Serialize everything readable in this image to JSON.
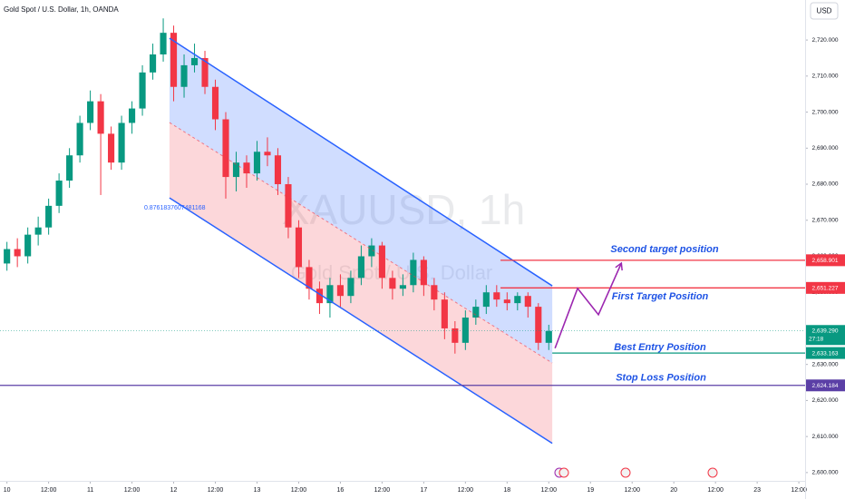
{
  "chart_data": {
    "type": "candlestick",
    "title": "Gold Spot / U.S. Dollar, 1h, OANDA",
    "watermark": "XAUUSD, 1h",
    "watermark_subtitle": "Gold Spot / U.S. Dollar",
    "currency": "USD",
    "up_color": "#089981",
    "down_color": "#f23645",
    "x": [
      0,
      3,
      6,
      9,
      12,
      15,
      18,
      21,
      24,
      27,
      30,
      33,
      36,
      39,
      42,
      45,
      48,
      51,
      54,
      57,
      60,
      63,
      66,
      69,
      72,
      75,
      78,
      81,
      84,
      87,
      90,
      93,
      96,
      99,
      102,
      105,
      108,
      111,
      114,
      117,
      120,
      123,
      126,
      129,
      132,
      135,
      138,
      141,
      144,
      147,
      150,
      153,
      156
    ],
    "open": [
      2658,
      2662,
      2660,
      2666,
      2668,
      2674,
      2681,
      2688,
      2697,
      2703,
      2694,
      2686,
      2697,
      2701,
      2711,
      2716,
      2722,
      2707,
      2713,
      2715,
      2707,
      2698,
      2682,
      2686,
      2683,
      2689,
      2688,
      2680,
      2668,
      2657,
      2651,
      2647,
      2652,
      2649,
      2654,
      2660,
      2663,
      2654,
      2651,
      2652,
      2659,
      2652,
      2648,
      2640,
      2636,
      2643,
      2646,
      2650,
      2648,
      2647,
      2649,
      2646,
      2636
    ],
    "high": [
      2664,
      2665,
      2668,
      2671,
      2676,
      2683,
      2690,
      2699,
      2706,
      2705,
      2696,
      2699,
      2703,
      2713,
      2719,
      2726,
      2724,
      2716,
      2719,
      2717,
      2709,
      2700,
      2689,
      2688,
      2692,
      2693,
      2690,
      2682,
      2670,
      2659,
      2653,
      2654,
      2655,
      2656,
      2663,
      2665,
      2664,
      2656,
      2655,
      2661,
      2660,
      2654,
      2650,
      2642,
      2645,
      2648,
      2652,
      2652,
      2650,
      2650,
      2650,
      2647,
      2641
    ],
    "low": [
      2656,
      2657,
      2658,
      2663,
      2666,
      2672,
      2679,
      2686,
      2695,
      2677,
      2684,
      2684,
      2694,
      2699,
      2709,
      2714,
      2703,
      2704,
      2711,
      2705,
      2695,
      2676,
      2678,
      2679,
      2681,
      2685,
      2677,
      2665,
      2654,
      2648,
      2644,
      2643,
      2646,
      2647,
      2652,
      2657,
      2651,
      2648,
      2649,
      2650,
      2649,
      2645,
      2637,
      2633,
      2634,
      2641,
      2644,
      2646,
      2645,
      2645,
      2643,
      2634,
      2634
    ],
    "close": [
      2662,
      2660,
      2666,
      2668,
      2674,
      2681,
      2688,
      2697,
      2703,
      2694,
      2686,
      2697,
      2701,
      2711,
      2716,
      2722,
      2707,
      2713,
      2715,
      2707,
      2698,
      2682,
      2686,
      2683,
      2689,
      2688,
      2680,
      2668,
      2657,
      2651,
      2647,
      2652,
      2649,
      2654,
      2660,
      2663,
      2654,
      2651,
      2652,
      2659,
      2652,
      2648,
      2640,
      2636,
      2643,
      2646,
      2650,
      2648,
      2647,
      2649,
      2646,
      2636,
      2639.29
    ],
    "xlim": [
      -2,
      229.8
    ],
    "xticks": [
      {
        "value": 0,
        "label": "10"
      },
      {
        "value": 12,
        "label": "12:00"
      },
      {
        "value": 24,
        "label": "11"
      },
      {
        "value": 36,
        "label": "12:00"
      },
      {
        "value": 48,
        "label": "12"
      },
      {
        "value": 60,
        "label": "12:00"
      },
      {
        "value": 72,
        "label": "13"
      },
      {
        "value": 84,
        "label": "12:00"
      },
      {
        "value": 96,
        "label": "16"
      },
      {
        "value": 108,
        "label": "12:00"
      },
      {
        "value": 120,
        "label": "17"
      },
      {
        "value": 132,
        "label": "12:00"
      },
      {
        "value": 144,
        "label": "18"
      },
      {
        "value": 156,
        "label": "12:00"
      },
      {
        "value": 168,
        "label": "19"
      },
      {
        "value": 180,
        "label": "12:00"
      },
      {
        "value": 192,
        "label": "20"
      },
      {
        "value": 204,
        "label": "12:00"
      },
      {
        "value": 216,
        "label": "23"
      },
      {
        "value": 228,
        "label": "12:00"
      }
    ],
    "ylim": [
      2597.7,
      2731.1
    ],
    "yticks": [
      {
        "value": 2600,
        "label": "2,600.000"
      },
      {
        "value": 2610,
        "label": "2,610.000"
      },
      {
        "value": 2620,
        "label": "2,620.000"
      },
      {
        "value": 2630,
        "label": "2,630.000"
      },
      {
        "value": 2640,
        "label": "2,640.000"
      },
      {
        "value": 2650,
        "label": "2,650.000"
      },
      {
        "value": 2660,
        "label": "2,660.000"
      },
      {
        "value": 2670,
        "label": "2,670.000"
      },
      {
        "value": 2680,
        "label": "2,680.000"
      },
      {
        "value": 2690,
        "label": "2,690.000"
      },
      {
        "value": 2700,
        "label": "2,700.000"
      },
      {
        "value": 2710,
        "label": "2,710.000"
      },
      {
        "value": 2720,
        "label": "2,720.000"
      }
    ],
    "channel": {
      "x": [
        46.8,
        157
      ],
      "upper": [
        2720.5,
        2651.8
      ],
      "middle": [
        2697.1,
        2630.4
      ],
      "lower": [
        2676.2,
        2608.1
      ],
      "color": "#2962ff"
    },
    "channel_label": "0.8761837607481168",
    "levels": [
      {
        "name": "Second target position",
        "value": 2658.901,
        "value_label": "2,658.901",
        "color": "#f23645",
        "start": 142.1
      },
      {
        "name": "First Target Position",
        "value": 2651.227,
        "value_label": "2,651.227",
        "color": "#f23645",
        "start": 142.1
      },
      {
        "name": "Best Entry Position",
        "value": 2633.163,
        "value_label": "2,633.163",
        "color": "#089981",
        "start": 157
      },
      {
        "name": "Stop Loss Position",
        "value": 2624.184,
        "value_label": "2,624.184",
        "color": "#5b3fa6",
        "start": -2
      }
    ],
    "last_price": {
      "value": 2639.29,
      "value_label": "2,639.290",
      "countdown": "27:18",
      "color": "#089981"
    },
    "projection": {
      "x": [
        157.8,
        164.3,
        170.3,
        176.9
      ],
      "y": [
        2634.5,
        2651.1,
        2643.8,
        2658.1
      ],
      "color": "#9c27b0"
    }
  }
}
